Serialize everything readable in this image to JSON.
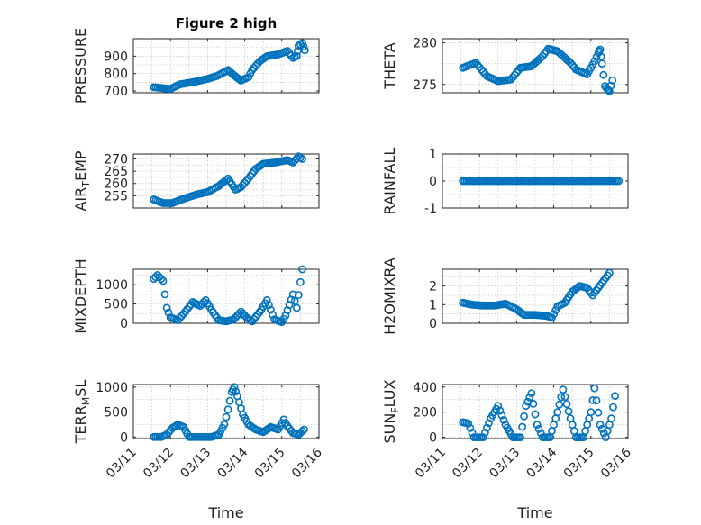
{
  "figure_title": "Figure 2 high",
  "x_axis_label": "Time",
  "x_tick_labels": [
    "03/11",
    "03/12",
    "03/13",
    "03/14",
    "03/15",
    "03/16"
  ],
  "colors": {
    "marker": "#0072BD",
    "axes": "#262626",
    "grid": "#b8b8b8"
  },
  "chart_data": [
    {
      "type": "scatter",
      "ylabel_main": "PRESSURE",
      "ylabel_sub": "",
      "ylabel_tail": "",
      "ylim": [
        690,
        1000
      ],
      "yticks": [
        700,
        800,
        900
      ],
      "ytick_labels": [
        "700",
        "800",
        "900"
      ],
      "xlim": [
        0,
        5
      ],
      "title": "Figure 2 high",
      "points": [
        [
          0.55,
          722
        ],
        [
          1.0,
          712
        ],
        [
          1.25,
          738
        ],
        [
          1.7,
          755
        ],
        [
          2.0,
          770
        ],
        [
          2.25,
          786
        ],
        [
          2.55,
          820
        ],
        [
          2.8,
          775
        ],
        [
          2.9,
          760
        ],
        [
          3.1,
          780
        ],
        [
          3.2,
          820
        ],
        [
          3.4,
          870
        ],
        [
          3.6,
          900
        ],
        [
          3.9,
          910
        ],
        [
          4.15,
          930
        ],
        [
          4.3,
          890
        ],
        [
          4.4,
          900
        ],
        [
          4.45,
          960
        ],
        [
          4.55,
          975
        ],
        [
          4.62,
          935
        ]
      ]
    },
    {
      "type": "scatter",
      "ylabel_main": "THETA",
      "ylabel_sub": "",
      "ylabel_tail": "",
      "ylim": [
        274,
        280.5
      ],
      "yticks": [
        275,
        280
      ],
      "ytick_labels": [
        "275",
        "280"
      ],
      "xlim": [
        0,
        5
      ],
      "points": [
        [
          0.55,
          277.0
        ],
        [
          0.9,
          277.6
        ],
        [
          1.2,
          276.0
        ],
        [
          1.5,
          275.4
        ],
        [
          1.85,
          275.6
        ],
        [
          2.1,
          277.0
        ],
        [
          2.4,
          277.2
        ],
        [
          2.7,
          278.4
        ],
        [
          2.85,
          279.3
        ],
        [
          3.1,
          279.0
        ],
        [
          3.45,
          277.6
        ],
        [
          3.6,
          276.8
        ],
        [
          3.9,
          276.2
        ],
        [
          4.1,
          277.8
        ],
        [
          4.2,
          278.8
        ],
        [
          4.25,
          279.2
        ],
        [
          4.3,
          277.5
        ],
        [
          4.38,
          274.8
        ],
        [
          4.45,
          274.4
        ],
        [
          4.5,
          274.2
        ],
        [
          4.58,
          275.5
        ]
      ]
    },
    {
      "type": "scatter",
      "ylabel_main": "AIR",
      "ylabel_sub": "T",
      "ylabel_tail": "EMP",
      "ylim": [
        250,
        272
      ],
      "yticks": [
        255,
        260,
        265,
        270
      ],
      "ytick_labels": [
        "255",
        "260",
        "265",
        "270"
      ],
      "xlim": [
        0,
        5
      ],
      "points": [
        [
          0.55,
          253.5
        ],
        [
          0.8,
          252.0
        ],
        [
          1.05,
          252.0
        ],
        [
          1.3,
          253.5
        ],
        [
          1.7,
          255.5
        ],
        [
          2.0,
          256.5
        ],
        [
          2.3,
          259.0
        ],
        [
          2.55,
          262.0
        ],
        [
          2.75,
          257.5
        ],
        [
          2.9,
          258.5
        ],
        [
          3.1,
          262.0
        ],
        [
          3.3,
          266.0
        ],
        [
          3.5,
          268.0
        ],
        [
          3.8,
          268.5
        ],
        [
          4.15,
          269.5
        ],
        [
          4.3,
          268.5
        ],
        [
          4.45,
          271.0
        ],
        [
          4.55,
          270.0
        ]
      ]
    },
    {
      "type": "scatter",
      "ylabel_main": "RAINFALL",
      "ylabel_sub": "",
      "ylabel_tail": "",
      "ylim": [
        -1,
        1
      ],
      "yticks": [
        -1,
        0,
        1
      ],
      "ytick_labels": [
        "-1",
        "0",
        "1"
      ],
      "xlim": [
        0,
        5
      ],
      "points": [
        [
          0.55,
          0
        ],
        [
          1.0,
          0
        ],
        [
          1.5,
          0
        ],
        [
          2.0,
          0
        ],
        [
          2.5,
          0
        ],
        [
          3.0,
          0
        ],
        [
          3.5,
          0
        ],
        [
          4.0,
          0
        ],
        [
          4.5,
          0
        ],
        [
          4.75,
          0
        ]
      ]
    },
    {
      "type": "scatter",
      "ylabel_main": "MIXDEPTH",
      "ylabel_sub": "",
      "ylabel_tail": "",
      "ylim": [
        0,
        1400
      ],
      "yticks": [
        0,
        500,
        1000
      ],
      "ytick_labels": [
        "0",
        "500",
        "1000"
      ],
      "xlim": [
        0,
        5
      ],
      "points": [
        [
          0.55,
          1150
        ],
        [
          0.65,
          1250
        ],
        [
          0.8,
          1100
        ],
        [
          0.9,
          400
        ],
        [
          1.0,
          150
        ],
        [
          1.2,
          80
        ],
        [
          1.4,
          300
        ],
        [
          1.6,
          550
        ],
        [
          1.8,
          450
        ],
        [
          1.95,
          600
        ],
        [
          2.1,
          350
        ],
        [
          2.3,
          80
        ],
        [
          2.5,
          50
        ],
        [
          2.7,
          100
        ],
        [
          2.9,
          300
        ],
        [
          3.05,
          150
        ],
        [
          3.2,
          50
        ],
        [
          3.45,
          350
        ],
        [
          3.6,
          600
        ],
        [
          3.8,
          100
        ],
        [
          4.0,
          30
        ],
        [
          4.1,
          200
        ],
        [
          4.3,
          750
        ],
        [
          4.4,
          400
        ],
        [
          4.55,
          1400
        ]
      ]
    },
    {
      "type": "scatter",
      "ylabel_main": "H2OMIXRA",
      "ylabel_sub": "",
      "ylabel_tail": "",
      "ylim": [
        0,
        2.9
      ],
      "yticks": [
        0,
        1,
        2
      ],
      "ytick_labels": [
        "0",
        "1",
        "2"
      ],
      "xlim": [
        0,
        5
      ],
      "points": [
        [
          0.55,
          1.1
        ],
        [
          0.8,
          1.0
        ],
        [
          1.1,
          0.95
        ],
        [
          1.4,
          0.95
        ],
        [
          1.7,
          1.05
        ],
        [
          2.0,
          0.75
        ],
        [
          2.2,
          0.45
        ],
        [
          2.5,
          0.45
        ],
        [
          2.8,
          0.4
        ],
        [
          2.95,
          0.3
        ],
        [
          3.1,
          0.9
        ],
        [
          3.3,
          1.1
        ],
        [
          3.5,
          1.7
        ],
        [
          3.7,
          2.0
        ],
        [
          3.9,
          1.9
        ],
        [
          4.05,
          1.5
        ],
        [
          4.2,
          1.9
        ],
        [
          4.35,
          2.3
        ],
        [
          4.5,
          2.7
        ]
      ]
    },
    {
      "type": "scatter",
      "ylabel_main": "TERR",
      "ylabel_sub": "M",
      "ylabel_tail": "SL",
      "ylim": [
        -30,
        1050
      ],
      "yticks": [
        0,
        500,
        1000
      ],
      "ytick_labels": [
        "0",
        "500",
        "1000"
      ],
      "xlim": [
        0,
        5
      ],
      "points": [
        [
          0.55,
          0
        ],
        [
          0.75,
          0
        ],
        [
          0.9,
          50
        ],
        [
          1.05,
          180
        ],
        [
          1.2,
          250
        ],
        [
          1.35,
          200
        ],
        [
          1.5,
          0
        ],
        [
          1.8,
          0
        ],
        [
          2.1,
          0
        ],
        [
          2.3,
          50
        ],
        [
          2.45,
          250
        ],
        [
          2.55,
          550
        ],
        [
          2.65,
          900
        ],
        [
          2.72,
          1000
        ],
        [
          2.8,
          820
        ],
        [
          2.95,
          450
        ],
        [
          3.1,
          250
        ],
        [
          3.3,
          150
        ],
        [
          3.5,
          100
        ],
        [
          3.7,
          200
        ],
        [
          3.9,
          150
        ],
        [
          4.05,
          350
        ],
        [
          4.15,
          220
        ],
        [
          4.3,
          80
        ],
        [
          4.45,
          50
        ],
        [
          4.6,
          150
        ]
      ]
    },
    {
      "type": "scatter",
      "ylabel_main": "SUN",
      "ylabel_sub": "F",
      "ylabel_tail": "LUX",
      "ylim": [
        -10,
        420
      ],
      "yticks": [
        0,
        200,
        400
      ],
      "ytick_labels": [
        "0",
        "200",
        "400"
      ],
      "xlim": [
        0,
        5
      ],
      "points": [
        [
          0.55,
          120
        ],
        [
          0.7,
          110
        ],
        [
          0.85,
          0
        ],
        [
          1.1,
          0
        ],
        [
          1.3,
          150
        ],
        [
          1.5,
          250
        ],
        [
          1.7,
          100
        ],
        [
          1.9,
          0
        ],
        [
          2.1,
          0
        ],
        [
          2.25,
          250
        ],
        [
          2.4,
          350
        ],
        [
          2.55,
          100
        ],
        [
          2.7,
          0
        ],
        [
          2.9,
          0
        ],
        [
          3.1,
          200
        ],
        [
          3.25,
          380
        ],
        [
          3.45,
          150
        ],
        [
          3.6,
          0
        ],
        [
          3.8,
          0
        ],
        [
          4.0,
          200
        ],
        [
          4.1,
          390
        ],
        [
          4.25,
          100
        ],
        [
          4.4,
          0
        ],
        [
          4.55,
          150
        ],
        [
          4.65,
          330
        ]
      ]
    }
  ]
}
